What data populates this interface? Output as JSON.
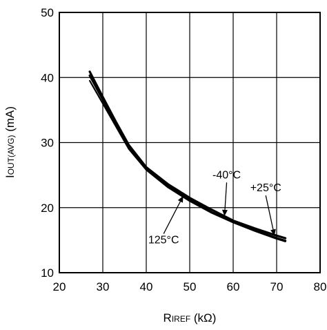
{
  "chart_data": {
    "type": "line",
    "title": "",
    "xlabel": {
      "main": "R",
      "sub": "IREF",
      "unit": " (kΩ)"
    },
    "ylabel": {
      "main": "I",
      "sub": "OUT(AVG)",
      "unit": " (mA)"
    },
    "xlim": [
      20,
      80
    ],
    "ylim": [
      10,
      50
    ],
    "xticks": [
      20,
      30,
      40,
      50,
      60,
      70,
      80
    ],
    "yticks": [
      10,
      20,
      30,
      40,
      50
    ],
    "grid": true,
    "legend": "none",
    "series": [
      {
        "name": "-40°C",
        "x": [
          27,
          30,
          33,
          36,
          40,
          45,
          50,
          55,
          60,
          65,
          70,
          72
        ],
        "y": [
          40.9,
          37.0,
          33.2,
          29.6,
          26.2,
          23.6,
          21.5,
          19.7,
          18.0,
          16.8,
          15.7,
          15.3
        ]
      },
      {
        "name": "+25°C",
        "x": [
          27,
          30,
          33,
          36,
          40,
          45,
          50,
          55,
          60,
          65,
          70,
          72
        ],
        "y": [
          40.3,
          36.6,
          32.8,
          29.2,
          25.9,
          23.4,
          21.2,
          19.3,
          17.8,
          16.5,
          15.3,
          14.9
        ]
      },
      {
        "name": "125°C",
        "x": [
          27,
          30,
          33,
          36,
          40,
          45,
          50,
          55,
          60,
          65,
          70,
          72
        ],
        "y": [
          39.5,
          36.0,
          32.5,
          29.0,
          25.8,
          23.1,
          21.0,
          19.2,
          17.7,
          16.4,
          15.2,
          14.8
        ]
      }
    ],
    "annotations": [
      {
        "text": "-40°C",
        "text_x": 58.5,
        "text_y": 24.5,
        "arrow_x": 58.0,
        "arrow_y": 18.7
      },
      {
        "text": "+25°C",
        "text_x": 67.5,
        "text_y": 22.5,
        "arrow_x": 69.5,
        "arrow_y": 15.7
      },
      {
        "text": "125°C",
        "text_x": 44.0,
        "text_y": 14.5,
        "arrow_x": 48.5,
        "arrow_y": 21.8
      }
    ]
  }
}
